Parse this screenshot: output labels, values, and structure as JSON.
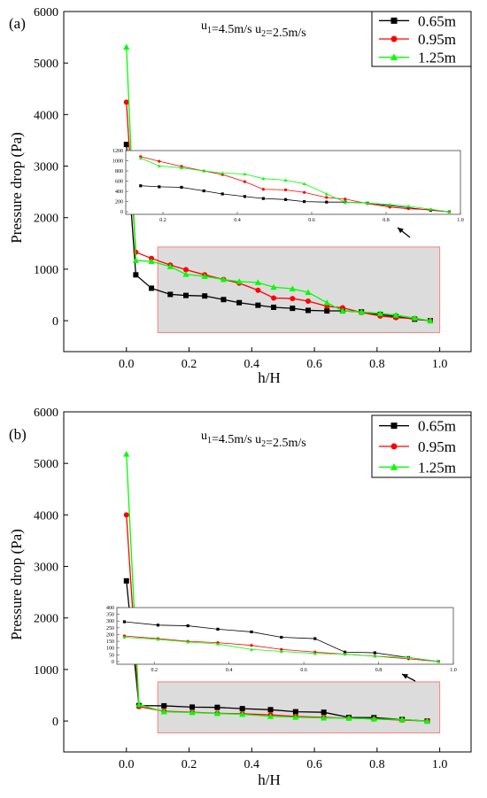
{
  "chart_data": [
    {
      "type": "line",
      "panel_label": "(a)",
      "annotation": {
        "prefix": "u",
        "sub1": "1",
        "mid": "=4.5m/s  u",
        "sub2": "2",
        "suffix": "=2.5m/s"
      },
      "xlabel": "h/H",
      "ylabel": "Pressure drop (Pa)",
      "xlim": [
        -0.2,
        1.1
      ],
      "ylim": [
        -600,
        6000
      ],
      "x_ticks": [
        "0.0",
        "0.2",
        "0.4",
        "0.6",
        "0.8",
        "1.0"
      ],
      "y_ticks": [
        "0",
        "1000",
        "2000",
        "3000",
        "4000",
        "5000",
        "6000"
      ],
      "legend_position": "top-right",
      "series": [
        {
          "name": "0.65m",
          "color": "#000000",
          "marker": "square",
          "points": [
            [
              0.0,
              3420
            ],
            [
              0.03,
              890
            ],
            [
              0.08,
              630
            ],
            [
              0.14,
              510
            ],
            [
              0.19,
              490
            ],
            [
              0.25,
              480
            ],
            [
              0.31,
              410
            ],
            [
              0.36,
              350
            ],
            [
              0.42,
              300
            ],
            [
              0.47,
              260
            ],
            [
              0.53,
              240
            ],
            [
              0.58,
              200
            ],
            [
              0.64,
              190
            ],
            [
              0.69,
              190
            ],
            [
              0.75,
              170
            ],
            [
              0.81,
              120
            ],
            [
              0.86,
              80
            ],
            [
              0.92,
              30
            ],
            [
              0.97,
              0
            ]
          ]
        },
        {
          "name": "0.95m",
          "color": "#ff0000",
          "marker": "circle",
          "points": [
            [
              0.0,
              4240
            ],
            [
              0.03,
              1330
            ],
            [
              0.08,
              1210
            ],
            [
              0.14,
              1080
            ],
            [
              0.19,
              990
            ],
            [
              0.25,
              890
            ],
            [
              0.31,
              800
            ],
            [
              0.36,
              730
            ],
            [
              0.42,
              590
            ],
            [
              0.47,
              440
            ],
            [
              0.53,
              430
            ],
            [
              0.58,
              380
            ],
            [
              0.64,
              280
            ],
            [
              0.69,
              250
            ],
            [
              0.75,
              160
            ],
            [
              0.81,
              90
            ],
            [
              0.86,
              60
            ],
            [
              0.92,
              40
            ],
            [
              0.97,
              0
            ]
          ]
        },
        {
          "name": "1.25m",
          "color": "#00ff00",
          "marker": "triangle",
          "points": [
            [
              0.0,
              5310
            ],
            [
              0.03,
              1170
            ],
            [
              0.08,
              1150
            ],
            [
              0.14,
              1050
            ],
            [
              0.19,
              900
            ],
            [
              0.25,
              860
            ],
            [
              0.31,
              800
            ],
            [
              0.36,
              760
            ],
            [
              0.42,
              740
            ],
            [
              0.47,
              650
            ],
            [
              0.53,
              620
            ],
            [
              0.58,
              550
            ],
            [
              0.64,
              350
            ],
            [
              0.69,
              190
            ],
            [
              0.75,
              170
            ],
            [
              0.81,
              140
            ],
            [
              0.86,
              110
            ],
            [
              0.92,
              50
            ],
            [
              0.97,
              0
            ]
          ]
        }
      ],
      "highlight_region": {
        "x": [
          0.1,
          1.0
        ],
        "y": [
          -230,
          1430
        ]
      },
      "inset": {
        "xlim": [
          0.1,
          1.0
        ],
        "ylim": [
          -50,
          1200
        ],
        "x_ticks": [
          "0.2",
          "0.4",
          "0.6",
          "0.8",
          "1.0"
        ],
        "y_ticks": [
          "0",
          "200",
          "400",
          "600",
          "800",
          "1000",
          "1200"
        ]
      }
    },
    {
      "type": "line",
      "panel_label": "(b)",
      "annotation": {
        "prefix": "u",
        "sub1": "1",
        "mid": "=4.5m/s  u",
        "sub2": "2",
        "suffix": "=2.5m/s"
      },
      "xlabel": "h/H",
      "ylabel": "Pressure drop (Pa)",
      "xlim": [
        -0.2,
        1.1
      ],
      "ylim": [
        -600,
        6000
      ],
      "x_ticks": [
        "0.0",
        "0.2",
        "0.4",
        "0.6",
        "0.8",
        "1.0"
      ],
      "y_ticks": [
        "0",
        "1000",
        "2000",
        "3000",
        "4000",
        "5000",
        "6000"
      ],
      "legend_position": "top-right",
      "series": [
        {
          "name": "0.65m",
          "color": "#000000",
          "marker": "square",
          "points": [
            [
              0.0,
              2720
            ],
            [
              0.04,
              300
            ],
            [
              0.12,
              295
            ],
            [
              0.21,
              270
            ],
            [
              0.29,
              265
            ],
            [
              0.37,
              240
            ],
            [
              0.46,
              220
            ],
            [
              0.54,
              180
            ],
            [
              0.63,
              170
            ],
            [
              0.71,
              70
            ],
            [
              0.79,
              65
            ],
            [
              0.88,
              30
            ],
            [
              0.96,
              0
            ]
          ]
        },
        {
          "name": "0.95m",
          "color": "#ff0000",
          "marker": "circle",
          "points": [
            [
              0.0,
              4000
            ],
            [
              0.04,
              280
            ],
            [
              0.12,
              190
            ],
            [
              0.21,
              170
            ],
            [
              0.29,
              150
            ],
            [
              0.37,
              140
            ],
            [
              0.46,
              120
            ],
            [
              0.54,
              90
            ],
            [
              0.63,
              70
            ],
            [
              0.71,
              55
            ],
            [
              0.79,
              40
            ],
            [
              0.88,
              20
            ],
            [
              0.96,
              0
            ]
          ]
        },
        {
          "name": "1.25m",
          "color": "#00ff00",
          "marker": "triangle",
          "points": [
            [
              0.0,
              5180
            ],
            [
              0.04,
              320
            ],
            [
              0.12,
              180
            ],
            [
              0.21,
              165
            ],
            [
              0.29,
              145
            ],
            [
              0.37,
              130
            ],
            [
              0.46,
              90
            ],
            [
              0.54,
              75
            ],
            [
              0.63,
              60
            ],
            [
              0.71,
              55
            ],
            [
              0.79,
              40
            ],
            [
              0.88,
              30
            ],
            [
              0.96,
              0
            ]
          ]
        }
      ],
      "highlight_region": {
        "x": [
          0.1,
          1.0
        ],
        "y": [
          -230,
          760
        ]
      },
      "inset": {
        "xlim": [
          0.1,
          1.0
        ],
        "ylim": [
          -20,
          400
        ],
        "x_ticks": [
          "0.2",
          "0.4",
          "0.6",
          "0.8",
          "1.0"
        ],
        "y_ticks": [
          "0",
          "50",
          "100",
          "150",
          "200",
          "250",
          "300",
          "350",
          "400"
        ]
      }
    }
  ]
}
